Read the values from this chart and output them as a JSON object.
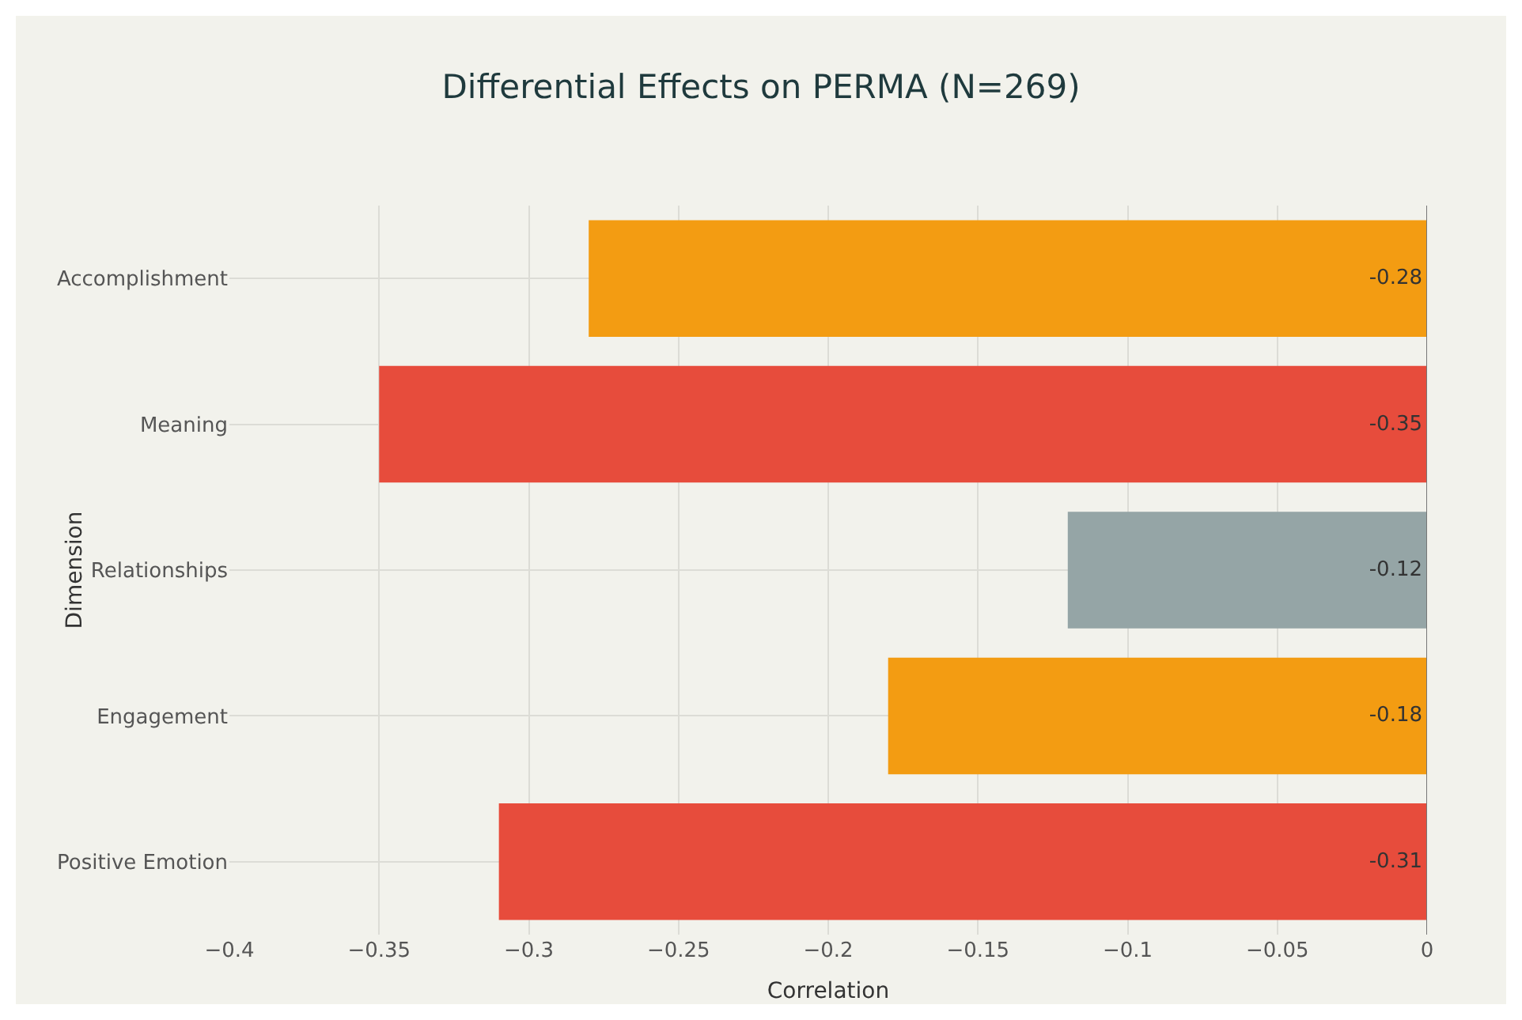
{
  "chart_data": {
    "type": "bar",
    "orientation": "horizontal",
    "title": "Differential Effects on PERMA (N=269)",
    "xlabel": "Correlation",
    "ylabel": "Dimension",
    "categories": [
      "Accomplishment",
      "Meaning",
      "Relationships",
      "Engagement",
      "Positive Emotion"
    ],
    "values": [
      -0.28,
      -0.35,
      -0.12,
      -0.18,
      -0.31
    ],
    "colors": [
      "#f39c12",
      "#e74c3c",
      "#95a5a6",
      "#f39c12",
      "#e74c3c"
    ],
    "xlim": [
      -0.4,
      0
    ],
    "xticks": [
      -0.4,
      -0.35,
      -0.3,
      -0.25,
      -0.2,
      -0.15,
      -0.1,
      -0.05,
      0
    ],
    "data_labels": true,
    "grid": true,
    "legend": false
  }
}
